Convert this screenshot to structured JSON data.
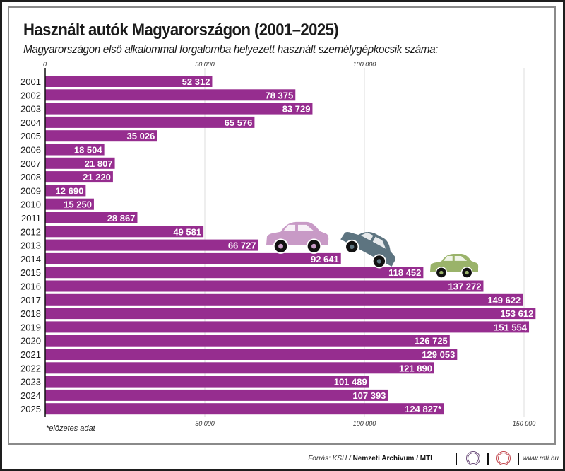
{
  "chart_data": {
    "type": "bar",
    "orientation": "horizontal",
    "title": "Használt autók Magyarországon (2001–2025)",
    "subtitle": "Magyarországon első alkalommal forgalomba helyezett használt személygépkocsik száma:",
    "categories": [
      "2001",
      "2002",
      "2003",
      "2004",
      "2005",
      "2006",
      "2007",
      "2008",
      "2009",
      "2010",
      "2011",
      "2012",
      "2013",
      "2014",
      "2015",
      "2016",
      "2017",
      "2018",
      "2019",
      "2020",
      "2021",
      "2022",
      "2023",
      "2024",
      "2025"
    ],
    "values": [
      52312,
      78375,
      83729,
      65576,
      35026,
      18504,
      21807,
      21220,
      12690,
      15250,
      28867,
      49581,
      66727,
      92641,
      118452,
      137272,
      149622,
      153612,
      151554,
      126725,
      129053,
      121890,
      101489,
      107393,
      124827
    ],
    "value_labels": [
      "52 312",
      "78 375",
      "83 729",
      "65 576",
      "35 026",
      "18 504",
      "21 807",
      "21 220",
      "12 690",
      "15 250",
      "28 867",
      "49 581",
      "66 727",
      "92 641",
      "118 452",
      "137 272",
      "149 622",
      "153 612",
      "151 554",
      "126 725",
      "129 053",
      "121 890",
      "101 489",
      "107 393",
      "124 827*"
    ],
    "xlim": [
      0,
      150000
    ],
    "top_ticks": [
      {
        "value": 0,
        "label": "0"
      },
      {
        "value": 50000,
        "label": "50 000"
      },
      {
        "value": 100000,
        "label": "100 000"
      }
    ],
    "bottom_ticks": [
      {
        "value": 50000,
        "label": "50 000"
      },
      {
        "value": 100000,
        "label": "100 000"
      },
      {
        "value": 150000,
        "label": "150 000"
      }
    ],
    "grid": true,
    "xlabel": "",
    "ylabel": "",
    "bar_color": "#962d8f",
    "annotation": "*előzetes adat",
    "illustrations": [
      {
        "name": "pink-car",
        "color": "#c89ac6"
      },
      {
        "name": "gray-car",
        "color": "#5d7480"
      },
      {
        "name": "green-car",
        "color": "#9ab36a"
      }
    ]
  },
  "footer": {
    "source_prefix": "Forrás: KSH / ",
    "source_bold": "Nemzeti Archívum / MTI",
    "logo1": "MTVA",
    "logo2": "MTI",
    "url": "www.mti.hu"
  }
}
